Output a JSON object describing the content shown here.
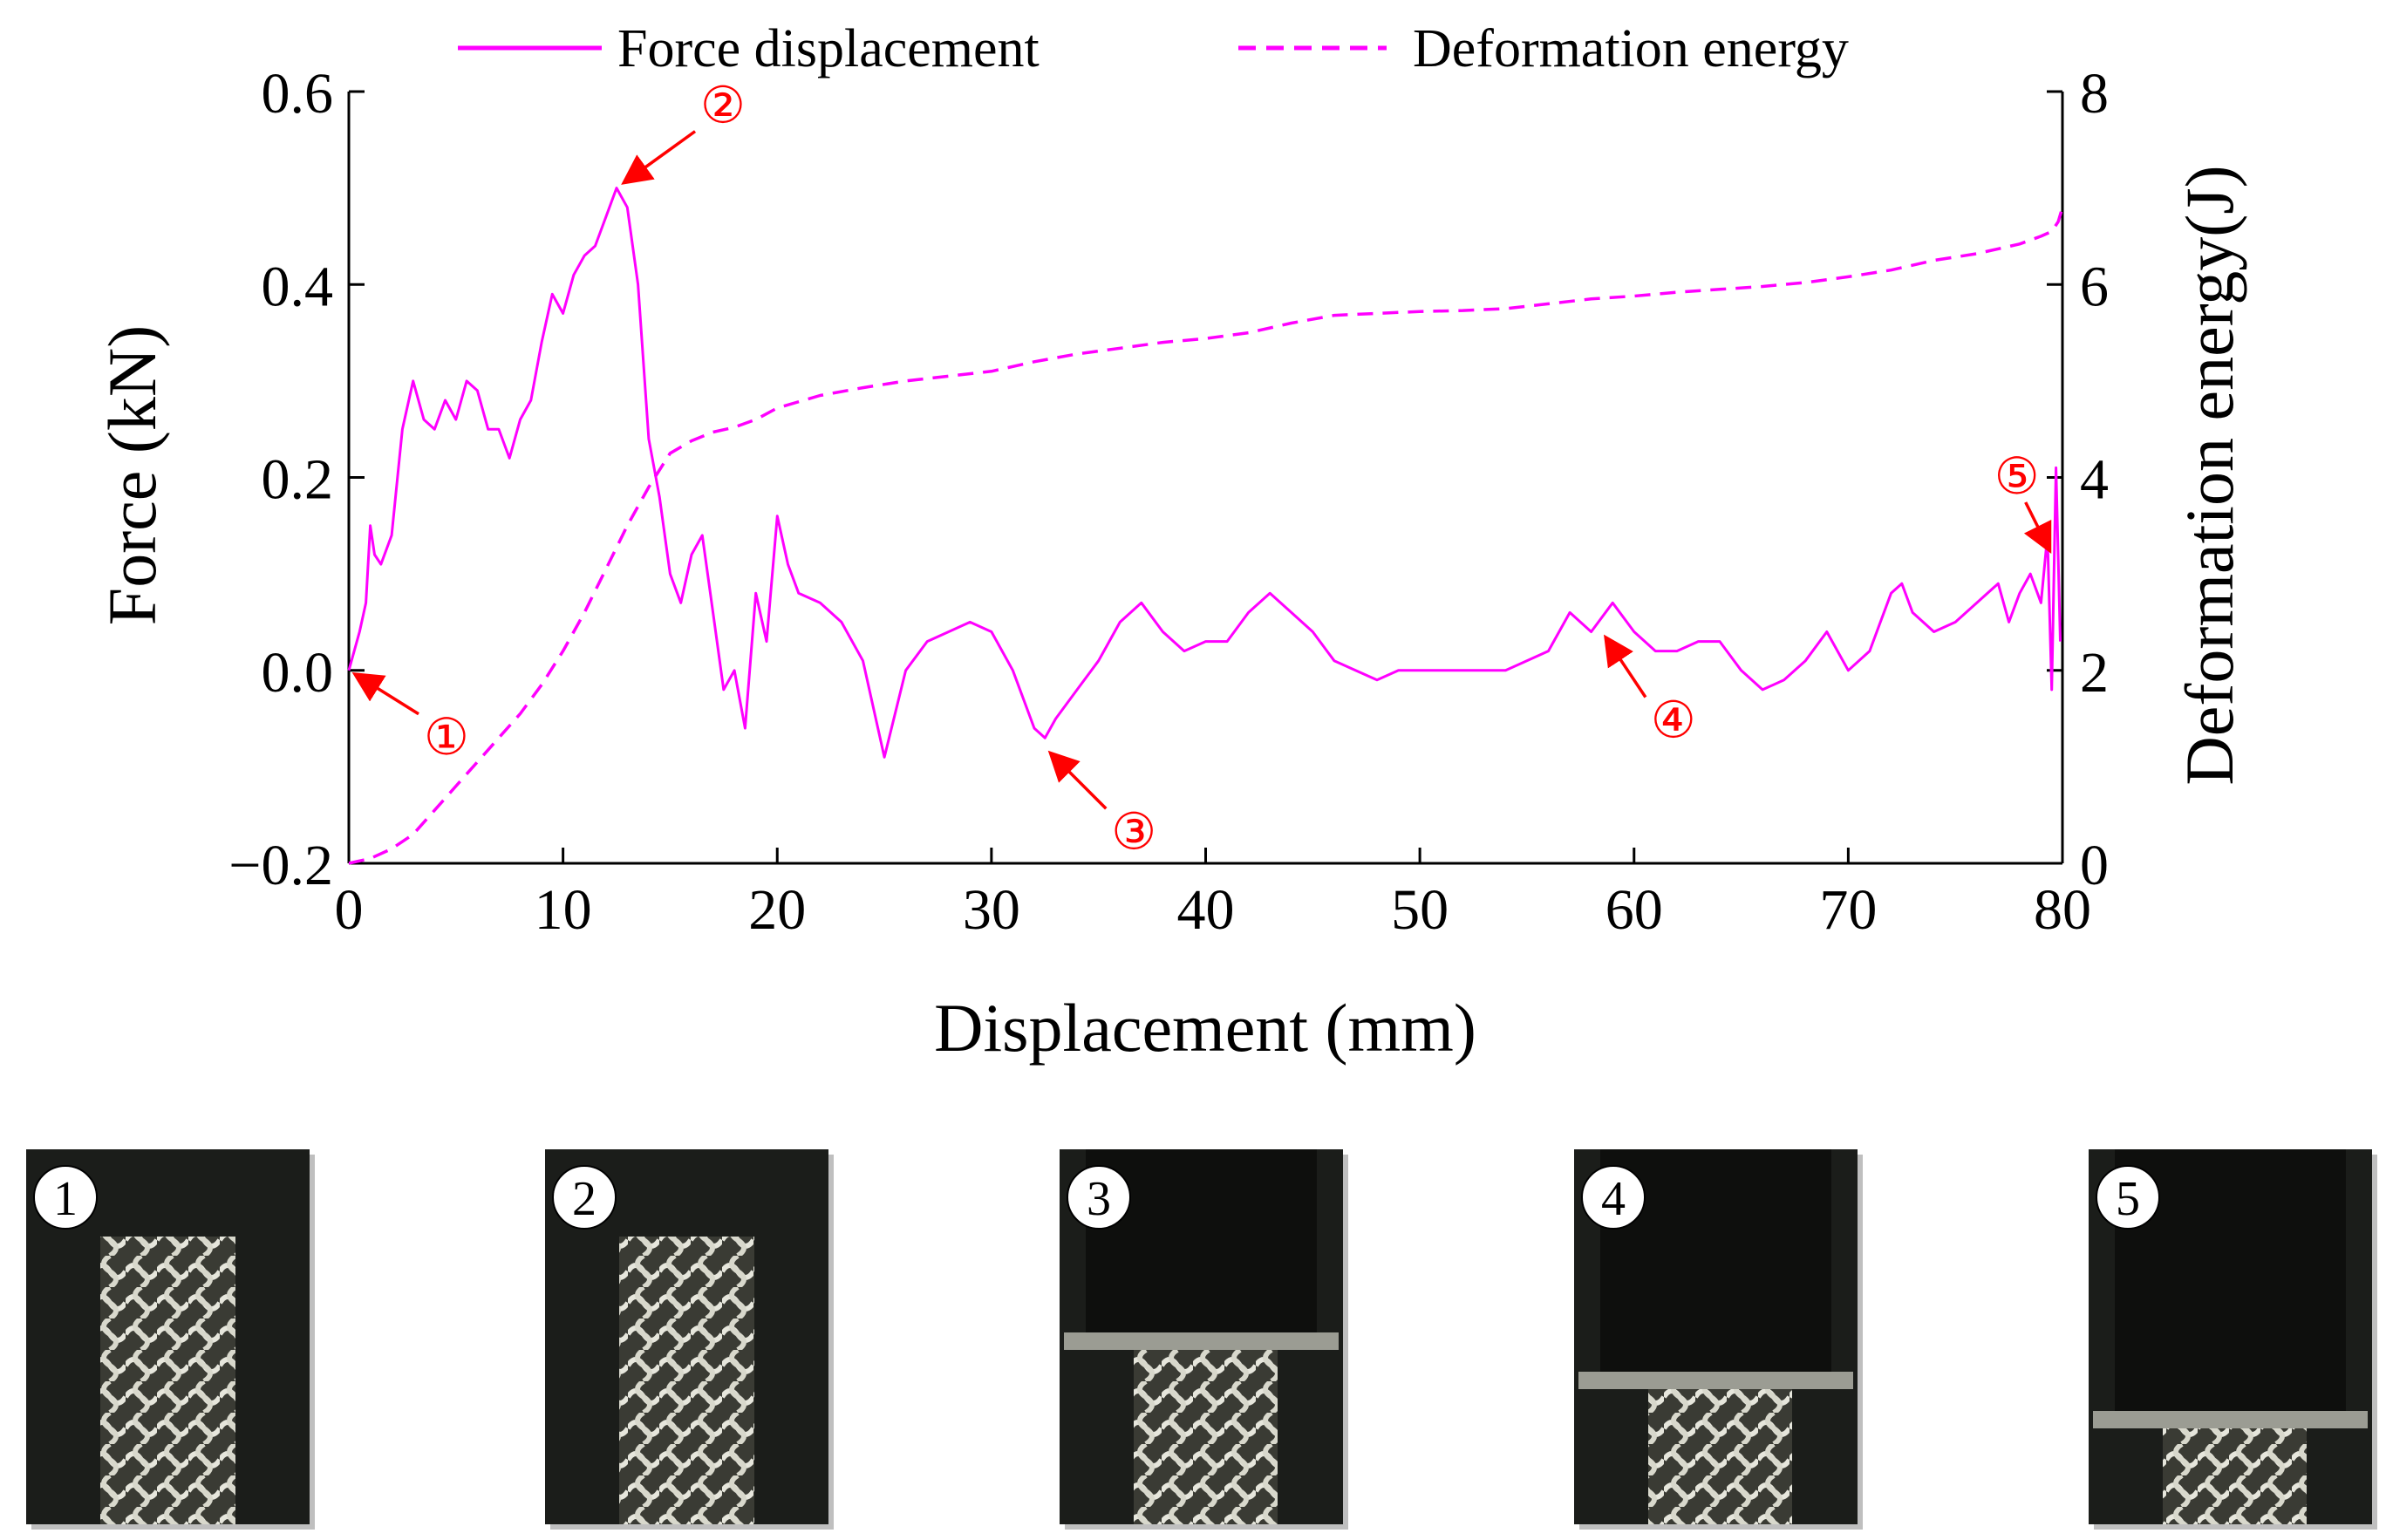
{
  "chart_data": {
    "type": "line",
    "xlabel": "Displacement (mm)",
    "ylabel": "Force (kN)",
    "y2label": "Deformation energy(J)",
    "xlim": [
      0,
      80
    ],
    "ylim": [
      -0.2,
      0.6
    ],
    "y2lim": [
      0,
      8
    ],
    "xticks": [
      "0",
      "10",
      "20",
      "30",
      "40",
      "50",
      "60",
      "70",
      "80"
    ],
    "yticks": [
      "−0.2",
      "0.0",
      "0.2",
      "0.4",
      "0.6"
    ],
    "y2ticks": [
      "0",
      "2",
      "4",
      "6",
      "8"
    ],
    "grid": false,
    "legend_position": "top",
    "line_color": "#ff00ff",
    "annotation_color": "#ff0000",
    "series": [
      {
        "name": "Force displacement",
        "axis": "left",
        "style": "solid",
        "x": [
          0,
          0.5,
          0.8,
          1.0,
          1.2,
          1.5,
          2.0,
          2.5,
          3.0,
          3.5,
          4.0,
          4.5,
          5.0,
          5.5,
          6.0,
          6.5,
          7.0,
          7.5,
          8.0,
          8.5,
          9.0,
          9.5,
          10.0,
          10.5,
          11.0,
          11.5,
          12.0,
          12.5,
          13.0,
          13.5,
          14.0,
          14.5,
          15.0,
          15.5,
          16.0,
          16.5,
          17.0,
          17.5,
          18.0,
          18.5,
          19.0,
          19.5,
          20.0,
          20.5,
          21.0,
          22.0,
          23.0,
          24.0,
          25.0,
          26.0,
          27.0,
          28.0,
          29.0,
          30.0,
          31.0,
          32.0,
          32.5,
          33.0,
          34.0,
          35.0,
          36.0,
          37.0,
          38.0,
          39.0,
          40.0,
          41.0,
          42.0,
          43.0,
          44.0,
          45.0,
          46.0,
          47.0,
          48.0,
          49.0,
          50.0,
          52.0,
          54.0,
          56.0,
          57.0,
          58.0,
          59.0,
          60.0,
          61.0,
          62.0,
          63.0,
          64.0,
          65.0,
          66.0,
          67.0,
          68.0,
          69.0,
          70.0,
          71.0,
          72.0,
          72.5,
          73.0,
          74.0,
          75.0,
          76.0,
          77.0,
          77.5,
          78.0,
          78.5,
          79.0,
          79.3,
          79.5,
          79.7,
          79.9
        ],
        "y": [
          0.0,
          0.04,
          0.07,
          0.15,
          0.12,
          0.11,
          0.14,
          0.25,
          0.3,
          0.26,
          0.25,
          0.28,
          0.26,
          0.3,
          0.29,
          0.25,
          0.25,
          0.22,
          0.26,
          0.28,
          0.34,
          0.39,
          0.37,
          0.41,
          0.43,
          0.44,
          0.47,
          0.5,
          0.48,
          0.4,
          0.24,
          0.18,
          0.1,
          0.07,
          0.12,
          0.14,
          0.06,
          -0.02,
          0.0,
          -0.06,
          0.08,
          0.03,
          0.16,
          0.11,
          0.08,
          0.07,
          0.05,
          0.01,
          -0.09,
          0.0,
          0.03,
          0.04,
          0.05,
          0.04,
          0.0,
          -0.06,
          -0.07,
          -0.05,
          -0.02,
          0.01,
          0.05,
          0.07,
          0.04,
          0.02,
          0.03,
          0.03,
          0.06,
          0.08,
          0.06,
          0.04,
          0.01,
          0.0,
          -0.01,
          0.0,
          0.0,
          0.0,
          0.0,
          0.02,
          0.06,
          0.04,
          0.07,
          0.04,
          0.02,
          0.02,
          0.03,
          0.03,
          0.0,
          -0.02,
          -0.01,
          0.01,
          0.04,
          0.0,
          0.02,
          0.08,
          0.09,
          0.06,
          0.04,
          0.05,
          0.07,
          0.09,
          0.05,
          0.08,
          0.1,
          0.07,
          0.14,
          -0.02,
          0.21,
          0.03
        ]
      },
      {
        "name": "Deformation energy",
        "axis": "right",
        "style": "dashed",
        "x": [
          0,
          1,
          2,
          3,
          4,
          5,
          6,
          7,
          8,
          9,
          10,
          11,
          12,
          13,
          14,
          15,
          16,
          17,
          18,
          19,
          20,
          22,
          24,
          26,
          28,
          30,
          32,
          34,
          36,
          38,
          40,
          42,
          44,
          46,
          48,
          50,
          52,
          54,
          56,
          58,
          60,
          62,
          64,
          66,
          68,
          70,
          72,
          74,
          76,
          78,
          79,
          79.5,
          79.8,
          80
        ],
        "y": [
          0,
          0.05,
          0.15,
          0.3,
          0.55,
          0.8,
          1.05,
          1.3,
          1.55,
          1.85,
          2.2,
          2.6,
          3.05,
          3.5,
          3.9,
          4.25,
          4.38,
          4.47,
          4.52,
          4.6,
          4.72,
          4.85,
          4.93,
          5.0,
          5.05,
          5.1,
          5.2,
          5.28,
          5.34,
          5.4,
          5.44,
          5.5,
          5.6,
          5.68,
          5.7,
          5.72,
          5.73,
          5.75,
          5.8,
          5.85,
          5.88,
          5.92,
          5.95,
          5.98,
          6.02,
          6.08,
          6.15,
          6.25,
          6.32,
          6.42,
          6.5,
          6.55,
          6.65,
          6.8
        ]
      }
    ],
    "annotations": [
      {
        "label": "①",
        "x": 0,
        "y": 0.0
      },
      {
        "label": "②",
        "x": 12.5,
        "y": 0.5
      },
      {
        "label": "③",
        "x": 32.5,
        "y": -0.08
      },
      {
        "label": "④",
        "x": 58.5,
        "y": 0.04
      },
      {
        "label": "⑤",
        "x": 79.5,
        "y": 0.12
      }
    ]
  },
  "photos": [
    {
      "label": "1",
      "stage": "intact"
    },
    {
      "label": "2",
      "stage": "intact"
    },
    {
      "label": "3",
      "stage": "crushed"
    },
    {
      "label": "4",
      "stage": "crushed"
    },
    {
      "label": "5",
      "stage": "crushed"
    }
  ]
}
